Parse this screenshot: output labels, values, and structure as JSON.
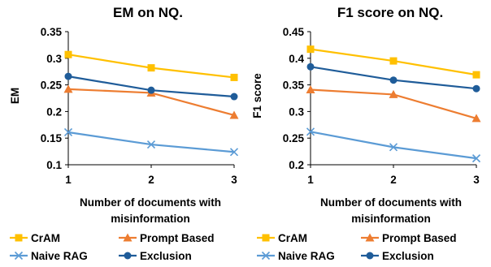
{
  "colors": {
    "CrAM": "#FFC000",
    "Prompt Based": "#ED7D31",
    "Naive RAG": "#5B9BD5",
    "Exclusion": "#1F5C99",
    "axis": "#000000"
  },
  "legend": {
    "items": [
      {
        "name": "CrAM",
        "marker": "square"
      },
      {
        "name": "Prompt Based",
        "marker": "triangle"
      },
      {
        "name": "Naive RAG",
        "marker": "x"
      },
      {
        "name": "Exclusion",
        "marker": "circle"
      }
    ]
  },
  "chart_data": [
    {
      "type": "line",
      "title": "EM on NQ.",
      "xlabel": [
        "Number of documents with",
        "misinformation"
      ],
      "ylabel": "EM",
      "x": [
        1,
        2,
        3
      ],
      "xtick_labels": [
        "1",
        "2",
        "3"
      ],
      "ylim": [
        0.1,
        0.35
      ],
      "ytick_labels": [
        "0.1",
        "0.15",
        "0.2",
        "0.25",
        "0.3",
        "0.35"
      ],
      "grid": false,
      "legend_position": "bottom",
      "series": [
        {
          "name": "CrAM",
          "values": [
            0.307,
            0.282,
            0.264
          ]
        },
        {
          "name": "Prompt Based",
          "values": [
            0.242,
            0.235,
            0.193
          ]
        },
        {
          "name": "Naive RAG",
          "values": [
            0.161,
            0.138,
            0.124
          ]
        },
        {
          "name": "Exclusion",
          "values": [
            0.266,
            0.24,
            0.228
          ]
        }
      ]
    },
    {
      "type": "line",
      "title": "F1 score on NQ.",
      "xlabel": [
        "Number of documents with",
        "misinformation"
      ],
      "ylabel": "F1 score",
      "x": [
        1,
        2,
        3
      ],
      "xtick_labels": [
        "1",
        "2",
        "3"
      ],
      "ylim": [
        0.2,
        0.45
      ],
      "ytick_labels": [
        "0.2",
        "0.25",
        "0.3",
        "0.35",
        "0.4",
        "0.45"
      ],
      "grid": false,
      "legend_position": "bottom",
      "series": [
        {
          "name": "CrAM",
          "values": [
            0.417,
            0.395,
            0.369
          ]
        },
        {
          "name": "Prompt Based",
          "values": [
            0.341,
            0.332,
            0.287
          ]
        },
        {
          "name": "Naive RAG",
          "values": [
            0.262,
            0.233,
            0.212
          ]
        },
        {
          "name": "Exclusion",
          "values": [
            0.384,
            0.359,
            0.343
          ]
        }
      ]
    }
  ]
}
